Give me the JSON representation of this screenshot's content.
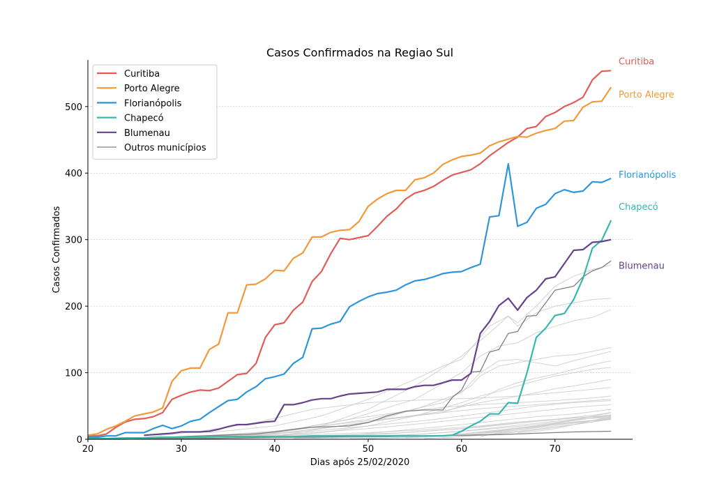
{
  "chart_data": {
    "type": "line",
    "title": "Casos Confirmados na Regiao Sul",
    "xlabel": "Dias após 25/02/2020",
    "ylabel": "Casos Confirmados",
    "xlim": [
      20,
      78.3
    ],
    "ylim": [
      0,
      570
    ],
    "xticks": [
      20,
      30,
      40,
      50,
      60,
      70
    ],
    "yticks": [
      0,
      100,
      200,
      300,
      400,
      500
    ],
    "grid": "horizontal dashed",
    "legend_position": "top-left",
    "colors": {
      "Curitiba": "#e05c57",
      "Porto Alegre": "#f09a3a",
      "Florianópolis": "#2e96d8",
      "Chapecó": "#35b8ad",
      "Blumenau": "#66428a",
      "Outros municípios": "#7f7f7f",
      "background_lines": "#c8c8c8",
      "grid": "#bbbbbb",
      "axis": "#000000"
    },
    "series": [
      {
        "name": "Curitiba",
        "label": "Curitiba",
        "x": [
          20,
          21,
          22,
          23,
          24,
          25,
          26,
          27,
          28,
          29,
          30,
          31,
          32,
          33,
          34,
          35,
          36,
          37,
          38,
          39,
          40,
          41,
          42,
          43,
          44,
          45,
          46,
          47,
          48,
          49,
          50,
          51,
          52,
          53,
          54,
          55,
          56,
          57,
          58,
          59,
          60,
          61,
          62,
          63,
          64,
          65,
          66,
          67,
          68,
          69,
          70,
          71,
          72,
          73,
          74,
          75,
          76
        ],
        "y": [
          5,
          5,
          8,
          18,
          26,
          30,
          31,
          34,
          40,
          60,
          66,
          71,
          74,
          73,
          77,
          87,
          97,
          99,
          114,
          153,
          172,
          175,
          194,
          206,
          237,
          252,
          279,
          302,
          300,
          303,
          306,
          320,
          335,
          346,
          361,
          370,
          374,
          380,
          389,
          397,
          401,
          405,
          414,
          426,
          436,
          446,
          454,
          467,
          470,
          485,
          491,
          500,
          506,
          514,
          540,
          553,
          554
        ]
      },
      {
        "name": "Porto Alegre",
        "label": "Porto Alegre",
        "x": [
          20,
          21,
          22,
          23,
          24,
          25,
          26,
          27,
          28,
          29,
          30,
          31,
          32,
          33,
          34,
          35,
          36,
          37,
          38,
          39,
          40,
          41,
          42,
          43,
          44,
          45,
          46,
          47,
          48,
          49,
          50,
          51,
          52,
          53,
          54,
          55,
          56,
          57,
          58,
          59,
          60,
          61,
          62,
          63,
          64,
          65,
          66,
          67,
          68,
          69,
          70,
          71,
          72,
          73,
          74,
          75,
          76
        ],
        "y": [
          6,
          8,
          15,
          20,
          27,
          35,
          38,
          41,
          47,
          87,
          103,
          107,
          107,
          135,
          143,
          190,
          190,
          232,
          233,
          241,
          254,
          253,
          272,
          280,
          304,
          304,
          311,
          314,
          315,
          327,
          350,
          361,
          369,
          374,
          374,
          390,
          393,
          400,
          413,
          420,
          425,
          427,
          430,
          441,
          447,
          451,
          455,
          454,
          460,
          464,
          467,
          478,
          479,
          499,
          507,
          508,
          529
        ]
      },
      {
        "name": "Florianópolis",
        "label": "Florianópolis",
        "x": [
          20,
          21,
          22,
          23,
          24,
          25,
          26,
          27,
          28,
          29,
          30,
          31,
          32,
          33,
          34,
          35,
          36,
          37,
          38,
          39,
          40,
          41,
          42,
          43,
          44,
          45,
          46,
          47,
          48,
          49,
          50,
          51,
          52,
          53,
          54,
          55,
          56,
          57,
          58,
          59,
          60,
          61,
          62,
          63,
          64,
          65,
          66,
          67,
          68,
          69,
          70,
          71,
          72,
          73,
          74,
          75,
          76
        ],
        "y": [
          3,
          3,
          5,
          5,
          10,
          10,
          10,
          16,
          21,
          16,
          20,
          27,
          30,
          40,
          49,
          58,
          60,
          71,
          79,
          91,
          94,
          98,
          114,
          123,
          166,
          167,
          173,
          177,
          199,
          207,
          214,
          219,
          221,
          224,
          232,
          238,
          240,
          244,
          249,
          251,
          252,
          258,
          263,
          334,
          336,
          414,
          320,
          326,
          347,
          353,
          369,
          375,
          371,
          373,
          387,
          386,
          392
        ]
      },
      {
        "name": "Chapecó",
        "label": "Chapecó",
        "x": [
          20,
          22,
          24,
          26,
          28,
          30,
          32,
          34,
          36,
          38,
          40,
          42,
          44,
          46,
          48,
          50,
          52,
          54,
          56,
          58,
          59,
          60,
          61,
          62,
          63,
          64,
          65,
          66,
          67,
          68,
          69,
          70,
          71,
          72,
          73,
          74,
          75,
          76
        ],
        "y": [
          1,
          1,
          2,
          2,
          3,
          3,
          3,
          4,
          4,
          4,
          4,
          4,
          5,
          5,
          5,
          5,
          5,
          5,
          5,
          5,
          6,
          12,
          20,
          27,
          38,
          38,
          55,
          54,
          100,
          153,
          167,
          186,
          189,
          210,
          242,
          287,
          299,
          329
        ]
      },
      {
        "name": "Blumenau",
        "label": "Blumenau",
        "x": [
          26,
          27,
          28,
          29,
          30,
          31,
          32,
          33,
          34,
          35,
          36,
          37,
          38,
          39,
          40,
          41,
          42,
          43,
          44,
          45,
          46,
          47,
          48,
          49,
          50,
          51,
          52,
          53,
          54,
          55,
          56,
          57,
          58,
          59,
          60,
          61,
          62,
          63,
          64,
          65,
          66,
          67,
          68,
          69,
          70,
          71,
          72,
          73,
          74,
          75,
          76
        ],
        "y": [
          6,
          7,
          8,
          9,
          11,
          11,
          11,
          12,
          15,
          19,
          22,
          22,
          24,
          26,
          27,
          52,
          52,
          55,
          59,
          61,
          61,
          65,
          68,
          69,
          70,
          71,
          75,
          75,
          75,
          79,
          81,
          81,
          85,
          89,
          89,
          99,
          159,
          177,
          201,
          212,
          194,
          213,
          224,
          241,
          244,
          264,
          284,
          285,
          296,
          297,
          300
        ]
      },
      {
        "name": "Outros municípios",
        "label": "",
        "x": [
          26,
          28,
          30,
          32,
          34,
          36,
          38,
          40,
          42,
          44,
          46,
          48,
          50,
          52,
          54,
          56,
          58,
          59,
          60,
          61,
          62,
          63,
          64,
          65,
          66,
          67,
          68,
          69,
          70,
          71,
          72,
          73,
          74,
          75,
          76
        ],
        "y": [
          2,
          3,
          4,
          5,
          6,
          7,
          8,
          11,
          15,
          18,
          19,
          20,
          25,
          35,
          42,
          44,
          44,
          63,
          74,
          101,
          102,
          131,
          135,
          159,
          162,
          185,
          186,
          205,
          224,
          227,
          230,
          244,
          253,
          258,
          268
        ]
      },
      {
        "name": "Outros municípios",
        "label": "",
        "x": [
          20,
          24,
          28,
          32,
          36,
          40,
          44,
          48,
          52,
          56,
          60,
          64,
          68,
          72,
          76
        ],
        "y": [
          0,
          0,
          1,
          1,
          2,
          3,
          3,
          4,
          4,
          5,
          6,
          7,
          9,
          11,
          12
        ]
      }
    ],
    "background_series": [
      {
        "x": [
          33,
          40,
          45,
          50,
          55,
          58,
          60,
          63,
          65,
          66,
          68,
          70,
          72,
          74,
          76
        ],
        "y": [
          10,
          20,
          35,
          60,
          90,
          110,
          120,
          170,
          185,
          175,
          200,
          230,
          245,
          255,
          262
        ]
      },
      {
        "x": [
          38,
          45,
          50,
          55,
          60,
          63,
          65,
          66,
          68,
          70,
          72,
          74,
          76
        ],
        "y": [
          5,
          20,
          45,
          80,
          125,
          160,
          185,
          170,
          190,
          200,
          205,
          210,
          212
        ]
      },
      {
        "x": [
          35,
          42,
          48,
          55,
          60,
          62,
          64,
          66,
          68,
          70,
          72,
          74,
          76
        ],
        "y": [
          5,
          15,
          30,
          60,
          100,
          125,
          140,
          145,
          160,
          170,
          178,
          183,
          195
        ]
      },
      {
        "x": [
          30,
          40,
          50,
          58,
          61,
          62,
          64,
          66,
          68,
          70,
          72,
          74,
          76
        ],
        "y": [
          2,
          10,
          30,
          55,
          80,
          95,
          110,
          115,
          120,
          125,
          127,
          132,
          138
        ]
      },
      {
        "x": [
          30,
          40,
          50,
          55,
          60,
          62,
          64,
          66,
          68,
          70,
          72,
          74,
          76
        ],
        "y": [
          2,
          8,
          25,
          45,
          70,
          100,
          118,
          120,
          115,
          110,
          118,
          125,
          132
        ]
      },
      {
        "x": [
          30,
          40,
          50,
          58,
          62,
          64,
          66,
          68,
          70,
          72,
          74,
          76
        ],
        "y": [
          3,
          12,
          28,
          40,
          60,
          75,
          85,
          92,
          98,
          105,
          112,
          118
        ]
      },
      {
        "x": [
          38,
          45,
          50,
          55,
          60,
          62,
          64,
          66,
          68,
          70,
          72,
          74,
          76
        ],
        "y": [
          3,
          10,
          20,
          35,
          55,
          65,
          72,
          80,
          88,
          95,
          100,
          105,
          108
        ]
      },
      {
        "x": [
          40,
          46,
          52,
          58,
          62,
          65,
          68,
          70,
          72,
          74,
          76
        ],
        "y": [
          4,
          18,
          30,
          42,
          55,
          62,
          70,
          76,
          80,
          85,
          90
        ]
      },
      {
        "x": [
          26,
          32,
          38,
          44,
          50,
          54,
          58,
          62,
          66,
          70,
          74,
          76
        ],
        "y": [
          3,
          12,
          25,
          45,
          55,
          58,
          60,
          62,
          65,
          70,
          75,
          78
        ]
      },
      {
        "x": [
          30,
          36,
          42,
          48,
          54,
          58,
          62,
          66,
          70,
          74,
          76
        ],
        "y": [
          2,
          6,
          15,
          30,
          42,
          48,
          52,
          55,
          58,
          62,
          65
        ]
      },
      {
        "x": [
          34,
          40,
          46,
          52,
          58,
          62,
          66,
          70,
          74,
          76
        ],
        "y": [
          2,
          8,
          18,
          30,
          40,
          46,
          50,
          54,
          58,
          60
        ]
      },
      {
        "x": [
          28,
          36,
          44,
          50,
          56,
          60,
          64,
          68,
          72,
          76
        ],
        "y": [
          1,
          5,
          12,
          20,
          28,
          35,
          42,
          50,
          55,
          58
        ]
      },
      {
        "x": [
          36,
          44,
          50,
          56,
          60,
          64,
          68,
          72,
          76
        ],
        "y": [
          3,
          10,
          16,
          24,
          30,
          36,
          42,
          48,
          52
        ]
      },
      {
        "x": [
          40,
          48,
          54,
          60,
          64,
          68,
          72,
          76
        ],
        "y": [
          2,
          6,
          14,
          22,
          28,
          34,
          38,
          45
        ]
      },
      {
        "x": [
          44,
          52,
          58,
          62,
          66,
          70,
          74,
          76
        ],
        "y": [
          2,
          8,
          14,
          18,
          24,
          30,
          36,
          40
        ]
      },
      {
        "x": [
          26,
          34,
          42,
          50,
          56,
          62,
          66,
          70,
          74,
          76
        ],
        "y": [
          1,
          3,
          6,
          10,
          14,
          20,
          26,
          30,
          34,
          37
        ]
      },
      {
        "x": [
          30,
          38,
          46,
          54,
          60,
          64,
          68,
          72,
          76
        ],
        "y": [
          1,
          3,
          6,
          10,
          16,
          22,
          27,
          32,
          35
        ]
      },
      {
        "x": [
          46,
          54,
          60,
          64,
          68,
          72,
          76
        ],
        "y": [
          2,
          6,
          12,
          18,
          24,
          30,
          33
        ]
      },
      {
        "x": [
          50,
          56,
          62,
          66,
          70,
          74,
          76
        ],
        "y": [
          1,
          4,
          10,
          16,
          22,
          28,
          31
        ]
      },
      {
        "x": [
          54,
          60,
          64,
          68,
          72,
          76
        ],
        "y": [
          2,
          8,
          14,
          20,
          26,
          30
        ]
      },
      {
        "x": [
          62,
          64,
          66,
          68,
          70,
          72,
          74,
          76
        ],
        "y": [
          4,
          10,
          14,
          18,
          22,
          26,
          28,
          30
        ]
      },
      {
        "x": [
          60,
          64,
          68,
          72,
          76
        ],
        "y": [
          5,
          12,
          20,
          28,
          36
        ]
      },
      {
        "x": [
          32,
          40,
          48,
          56,
          62,
          68,
          74,
          76
        ],
        "y": [
          1,
          2,
          4,
          8,
          14,
          22,
          32,
          35
        ]
      },
      {
        "x": [
          42,
          50,
          58,
          64,
          70,
          76
        ],
        "y": [
          1,
          3,
          6,
          12,
          24,
          40
        ]
      },
      {
        "x": [
          48,
          56,
          62,
          66,
          70,
          74,
          76
        ],
        "y": [
          1,
          3,
          8,
          14,
          20,
          28,
          34
        ]
      },
      {
        "x": [
          58,
          62,
          66,
          70,
          74,
          76
        ],
        "y": [
          2,
          6,
          12,
          18,
          26,
          32
        ]
      },
      {
        "x": [
          66,
          68,
          70,
          72,
          74,
          76
        ],
        "y": [
          10,
          12,
          16,
          22,
          28,
          33
        ]
      },
      {
        "x": [
          56,
          60,
          64,
          68,
          72,
          76
        ],
        "y": [
          1,
          4,
          8,
          14,
          22,
          30
        ]
      }
    ]
  }
}
